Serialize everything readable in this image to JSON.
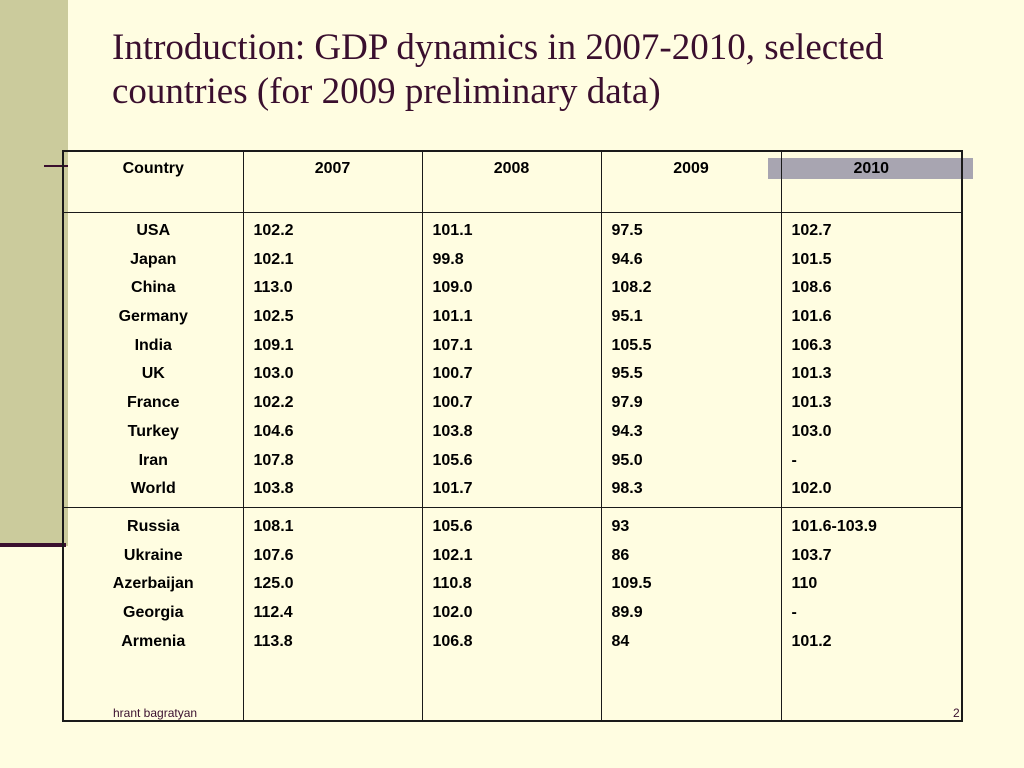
{
  "slide": {
    "title": "Introduction: GDP dynamics in 2007-2010, selected countries (for 2009 preliminary data)",
    "footer_author": "hrant bagratyan",
    "page_number": "2",
    "colors": {
      "background": "#FFFDE1",
      "left_band": "#CBCB9C",
      "title_text": "#3A0F2E",
      "accent_box": "#A8A5B1"
    }
  },
  "table": {
    "headers": [
      "Country",
      "2007",
      "2008",
      "2009",
      "2010"
    ],
    "groups": [
      {
        "countries": [
          "USA",
          "Japan",
          "China",
          "Germany",
          "India",
          "UK",
          "France",
          "Turkey",
          "Iran",
          "World"
        ],
        "y2007": [
          "102.2",
          "102.1",
          "113.0",
          "102.5",
          "109.1",
          "103.0",
          "102.2",
          "104.6",
          "107.8",
          "103.8"
        ],
        "y2008": [
          "101.1",
          "99.8",
          "109.0",
          "101.1",
          "107.1",
          "100.7",
          "100.7",
          "103.8",
          "105.6",
          "101.7"
        ],
        "y2009": [
          "97.5",
          "94.6",
          "108.2",
          "95.1",
          "105.5",
          "95.5",
          "97.9",
          "94.3",
          "95.0",
          "98.3"
        ],
        "y2010": [
          "102.7",
          "101.5",
          "108.6",
          "101.6",
          "106.3",
          "101.3",
          "101.3",
          "103.0",
          "-",
          "102.0"
        ]
      },
      {
        "countries": [
          "Russia",
          "Ukraine",
          "Azerbaijan",
          "Georgia",
          "Armenia"
        ],
        "y2007": [
          "108.1",
          "107.6",
          "125.0",
          "112.4",
          "113.8"
        ],
        "y2008": [
          "105.6",
          "102.1",
          "110.8",
          "102.0",
          "106.8"
        ],
        "y2009": [
          "93",
          "86",
          "109.5",
          "89.9",
          "84"
        ],
        "y2010": [
          "101.6-103.9",
          "103.7",
          "110",
          "-",
          "101.2"
        ]
      }
    ]
  }
}
